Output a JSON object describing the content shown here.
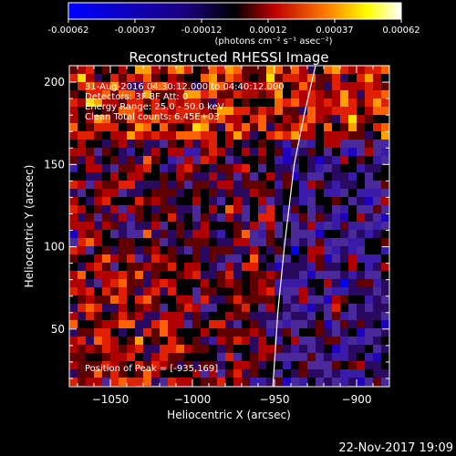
{
  "chart_data": {
    "type": "heatmap",
    "title": "Reconstructed RHESSI Image",
    "xlabel": "Heliocentric X (arcsec)",
    "ylabel": "Heliocentric Y (arcsec)",
    "xlim": [
      -1075,
      -880
    ],
    "ylim": [
      15,
      210
    ],
    "xticks": [
      -1050,
      -1000,
      -950,
      -900
    ],
    "yticks": [
      50,
      100,
      150,
      200
    ],
    "colorbar": {
      "ticks": [
        "-0.00062",
        "-0.00037",
        "-0.00012",
        "0.00012",
        "0.00037",
        "0.00062"
      ],
      "units": "(photons cm⁻² s⁻¹ asec⁻²)",
      "range": [
        -0.00062,
        0.00062
      ]
    },
    "annotations": [
      "31-Aug-2016 04:30:12.000 to 04:40:12.000",
      "Detectors: 3F 8F  Att: 0",
      "Energy Range: 25.0 - 50.0 keV",
      "Clean   Total counts: 6.45E+03",
      "Position of Peak = [-935,169]"
    ],
    "limb_curve": [
      [
        -951,
        15
      ],
      [
        -948,
        60
      ],
      [
        -944,
        100
      ],
      [
        -938,
        150
      ],
      [
        -932,
        180
      ],
      [
        -925,
        210
      ]
    ],
    "timestamp": "22-Nov-2017 19:09"
  }
}
